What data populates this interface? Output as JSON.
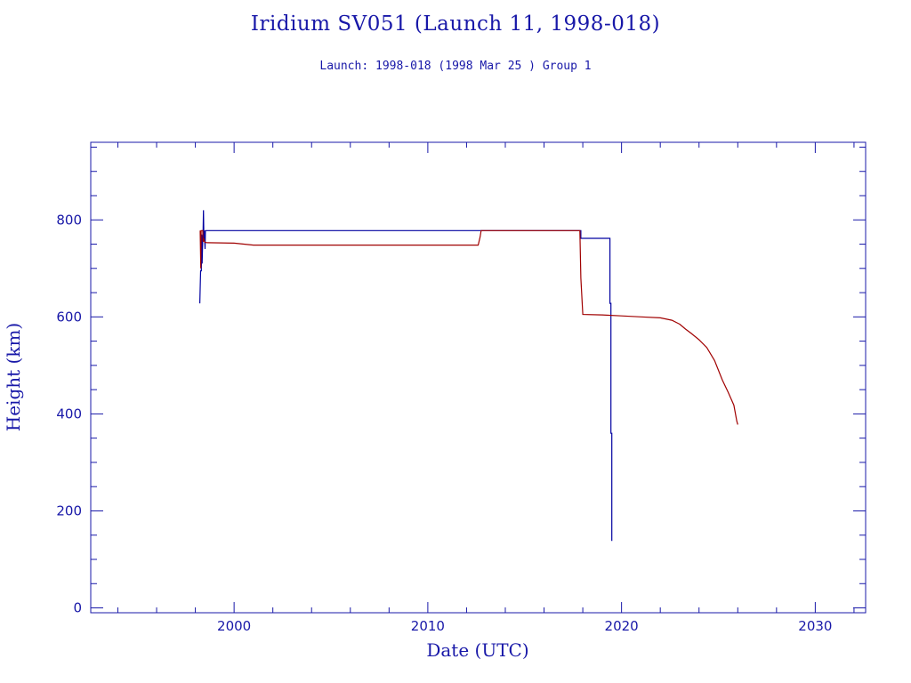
{
  "chart_data": {
    "type": "line",
    "title": "Iridium SV051 (Launch 11, 1998-018)",
    "subtitle": "Launch: 1998-018  (1998 Mar 25 )  Group 1",
    "xlabel": "Date (UTC)",
    "ylabel": "Height (km)",
    "xlim": [
      1992.6,
      2032.6
    ],
    "ylim": [
      -10,
      960
    ],
    "x_ticks": [
      2000,
      2010,
      2020,
      2030
    ],
    "y_ticks": [
      0,
      200,
      400,
      600,
      800
    ],
    "grid": false,
    "series": [
      {
        "color": "#0000a0",
        "points": [
          [
            1998.23,
            628
          ],
          [
            1998.27,
            695
          ],
          [
            1998.31,
            695
          ],
          [
            1998.33,
            770
          ],
          [
            1998.35,
            710
          ],
          [
            1998.38,
            760
          ],
          [
            1998.4,
            778
          ],
          [
            1998.42,
            820
          ],
          [
            1998.44,
            760
          ],
          [
            1998.46,
            778
          ],
          [
            1998.5,
            740
          ],
          [
            1998.52,
            778
          ],
          [
            2001.0,
            778
          ],
          [
            2005.0,
            778
          ],
          [
            2010.0,
            778
          ],
          [
            2015.0,
            778
          ],
          [
            2017.9,
            778
          ],
          [
            2017.9,
            762
          ],
          [
            2019.4,
            762
          ],
          [
            2019.4,
            628
          ],
          [
            2019.45,
            628
          ],
          [
            2019.45,
            360
          ],
          [
            2019.5,
            360
          ],
          [
            2019.5,
            138
          ]
        ]
      },
      {
        "color": "#a00000",
        "points": [
          [
            1998.25,
            778
          ],
          [
            1998.28,
            700
          ],
          [
            1998.3,
            778
          ],
          [
            1998.38,
            778
          ],
          [
            1998.4,
            755
          ],
          [
            1998.44,
            760
          ],
          [
            1998.48,
            754
          ],
          [
            1998.6,
            753
          ],
          [
            2000.0,
            752
          ],
          [
            2001.0,
            748
          ],
          [
            2005.0,
            748
          ],
          [
            2010.0,
            748
          ],
          [
            2012.6,
            748
          ],
          [
            2012.7,
            765
          ],
          [
            2012.75,
            778
          ],
          [
            2015.0,
            778
          ],
          [
            2017.85,
            778
          ],
          [
            2017.9,
            680
          ],
          [
            2018.0,
            605
          ],
          [
            2019.0,
            604
          ],
          [
            2020.0,
            602
          ],
          [
            2021.0,
            600
          ],
          [
            2022.0,
            598
          ],
          [
            2022.6,
            593
          ],
          [
            2023.0,
            585
          ],
          [
            2023.3,
            575
          ],
          [
            2023.6,
            566
          ],
          [
            2024.0,
            553
          ],
          [
            2024.4,
            537
          ],
          [
            2024.8,
            510
          ],
          [
            2025.2,
            470
          ],
          [
            2025.5,
            445
          ],
          [
            2025.8,
            418
          ],
          [
            2025.95,
            385
          ],
          [
            2026.0,
            378
          ]
        ]
      }
    ]
  }
}
